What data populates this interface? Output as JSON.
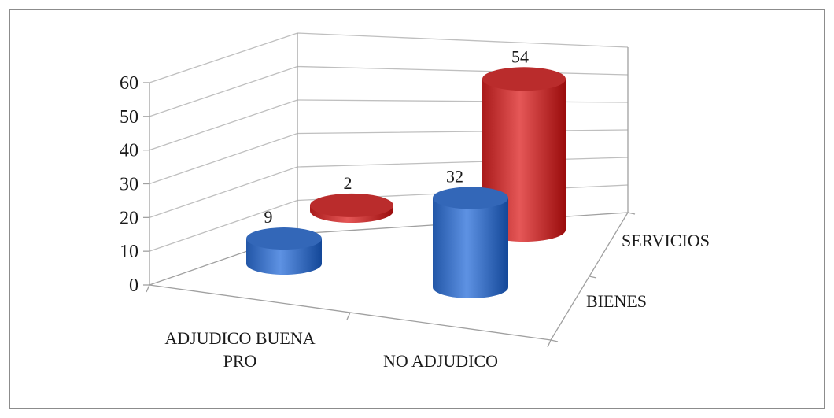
{
  "chart_data": {
    "type": "bar",
    "style": "3d-cylinder",
    "categories": [
      "ADJUDICO BUENA PRO",
      "NO ADJUDICO"
    ],
    "series": [
      {
        "name": "BIENES",
        "values": [
          9,
          32
        ],
        "color": "#3b6fc0"
      },
      {
        "name": "SERVICIOS",
        "values": [
          2,
          54
        ],
        "color": "#c23434"
      }
    ],
    "yticks": [
      0,
      10,
      20,
      30,
      40,
      50,
      60
    ],
    "ylim": [
      0,
      60
    ],
    "grid": true,
    "category_label_lines": [
      [
        "ADJUDICO BUENA",
        "PRO"
      ],
      [
        "NO ADJUDICO"
      ]
    ]
  }
}
